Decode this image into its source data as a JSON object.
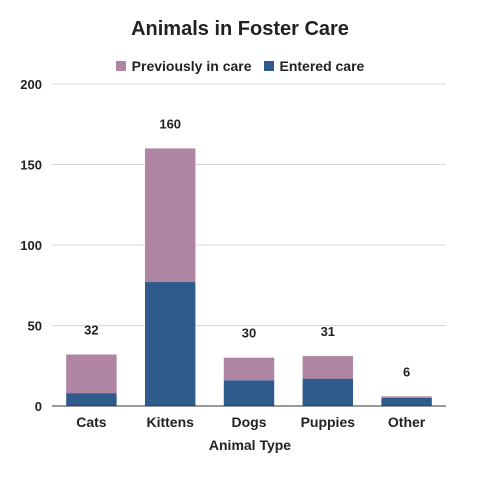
{
  "chart_data": {
    "type": "bar",
    "stacked": true,
    "title": "Animals in Foster Care",
    "xlabel": "Animal Type",
    "ylabel": "",
    "ylim": [
      0,
      200
    ],
    "yticks": [
      0,
      50,
      100,
      150,
      200
    ],
    "grid": true,
    "legend_position": "top",
    "categories": [
      "Cats",
      "Kittens",
      "Dogs",
      "Puppies",
      "Other"
    ],
    "series": [
      {
        "name": "Entered care",
        "color": "#2e5b8c",
        "values": [
          8,
          77,
          16,
          17,
          5
        ]
      },
      {
        "name": "Previously in care",
        "color": "#b085a4",
        "values": [
          24,
          83,
          14,
          14,
          1
        ]
      }
    ],
    "totals": [
      "32",
      "160",
      "30",
      "31",
      "6"
    ],
    "legend_order": [
      "Previously in care",
      "Entered care"
    ]
  }
}
